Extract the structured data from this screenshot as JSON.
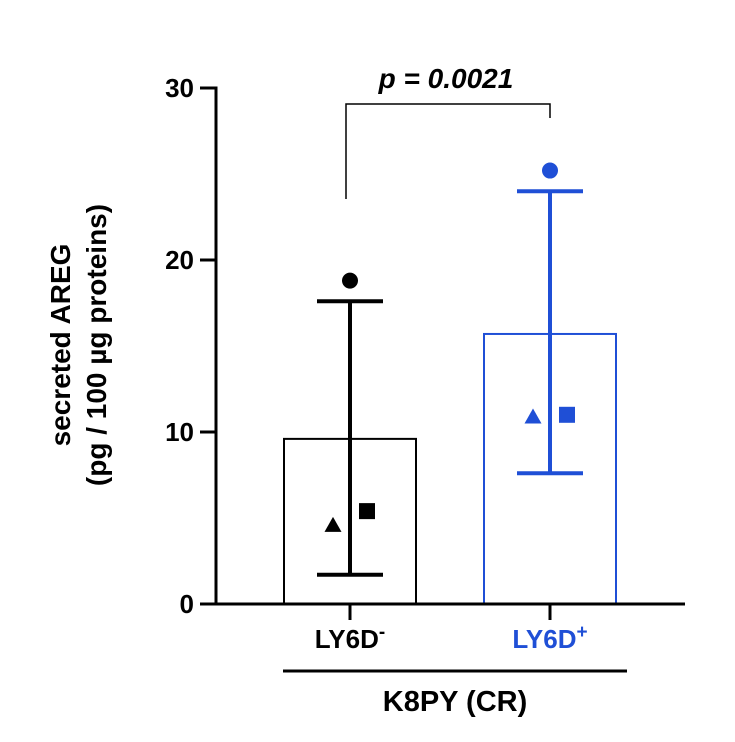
{
  "chart_data": {
    "type": "bar",
    "y_title_line1": "secreted AREG",
    "y_title_line2": "(pg / 100 µg proteins)",
    "ylim": [
      0,
      30
    ],
    "yticks": [
      0,
      10,
      20,
      30
    ],
    "categories": [
      {
        "base": "LY6D",
        "sup": "-",
        "color": "#000000"
      },
      {
        "base": "LY6D",
        "sup": "+",
        "color": "#1f4fd6"
      }
    ],
    "bars": [
      {
        "mean": 9.6,
        "err_low": 1.7,
        "err_high": 17.6,
        "points": [
          {
            "shape": "circle",
            "y": 18.8
          },
          {
            "shape": "triangle",
            "y": 4.6
          },
          {
            "shape": "square",
            "y": 5.4
          }
        ]
      },
      {
        "mean": 15.7,
        "err_low": 7.6,
        "err_high": 24.0,
        "points": [
          {
            "shape": "circle",
            "y": 25.2
          },
          {
            "shape": "triangle",
            "y": 10.9
          },
          {
            "shape": "square",
            "y": 11.0
          }
        ]
      }
    ],
    "group_label": "K8PY (CR)",
    "significance": {
      "text": "p = 0.0021"
    }
  }
}
